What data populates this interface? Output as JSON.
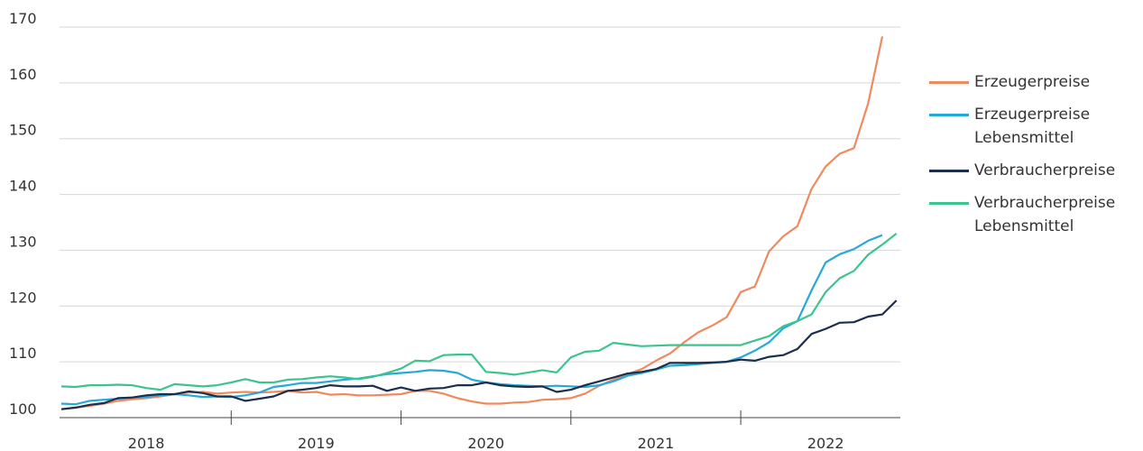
{
  "chart_data": {
    "type": "line",
    "categories": [
      null,
      null,
      null,
      null,
      null,
      null,
      "2018",
      null,
      null,
      null,
      null,
      null,
      null,
      null,
      null,
      null,
      null,
      null,
      "2019",
      null,
      null,
      null,
      null,
      null,
      null,
      null,
      null,
      null,
      null,
      null,
      "2020",
      null,
      null,
      null,
      null,
      null,
      null,
      null,
      null,
      null,
      null,
      null,
      "2021",
      null,
      null,
      null,
      null,
      null,
      null,
      null,
      null,
      null,
      null,
      null,
      "2022",
      null,
      null,
      null,
      null,
      null
    ],
    "series": [
      {
        "name": "Erzeugerpreise",
        "color": "#ef8a5f",
        "values": [
          101.5,
          101.8,
          102.1,
          102.5,
          103,
          103.3,
          103.5,
          103.8,
          104.2,
          104.5,
          104.6,
          104.3,
          104.5,
          104.6,
          104.5,
          104.6,
          104.8,
          104.5,
          104.6,
          104.1,
          104.2,
          104,
          104,
          104.1,
          104.2,
          104.8,
          104.8,
          104.3,
          103.5,
          102.9,
          102.5,
          102.5,
          102.7,
          102.8,
          103.2,
          103.3,
          103.5,
          104.3,
          105.7,
          106.8,
          107.8,
          108.7,
          110.2,
          111.5,
          113.5,
          115.3,
          116.5,
          118,
          122.5,
          123.5,
          129.8,
          132.5,
          134.3,
          141,
          145,
          147.3,
          148.3,
          156.3,
          168.3,
          null
        ]
      },
      {
        "name": "Erzeugerpreise Lebensmittel",
        "color": "#27a9d8",
        "values": [
          102.5,
          102.4,
          103,
          103.2,
          103.4,
          103.6,
          103.7,
          104,
          104.2,
          104,
          103.7,
          103.8,
          103.7,
          104,
          104.5,
          105.5,
          105.8,
          106.2,
          106.2,
          106.5,
          106.8,
          107,
          107.4,
          107.8,
          108,
          108.2,
          108.5,
          108.4,
          108,
          106.8,
          106.3,
          106,
          105.8,
          105.7,
          105.6,
          105.7,
          105.6,
          105.5,
          105.8,
          106.5,
          107.5,
          108,
          108.6,
          109.3,
          109.4,
          109.6,
          109.8,
          110,
          110.8,
          112,
          113.5,
          116,
          117.3,
          122.8,
          127.8,
          129.3,
          130.2,
          131.7,
          132.7,
          null
        ]
      },
      {
        "name": "Verbraucherpreise",
        "color": "#1b2e4b",
        "values": [
          101.5,
          101.8,
          102.3,
          102.6,
          103.5,
          103.6,
          104,
          104.2,
          104.2,
          104.7,
          104.4,
          103.8,
          103.8,
          103,
          103.4,
          103.8,
          104.8,
          105,
          105.3,
          105.8,
          105.6,
          105.6,
          105.7,
          104.8,
          105.4,
          104.8,
          105.2,
          105.3,
          105.8,
          105.8,
          106.3,
          105.8,
          105.6,
          105.5,
          105.6,
          104.6,
          105,
          105.8,
          106.5,
          107.2,
          107.9,
          108.2,
          108.7,
          109.8,
          109.8,
          109.8,
          109.9,
          110,
          110.4,
          110.2,
          110.9,
          111.2,
          112.3,
          115,
          115.9,
          117,
          117.1,
          118.1,
          118.5,
          121
        ]
      },
      {
        "name": "Verbraucherpreise Lebensmittel",
        "color": "#3cc48e",
        "values": [
          105.6,
          105.5,
          105.8,
          105.8,
          105.9,
          105.8,
          105.3,
          105,
          106,
          105.8,
          105.6,
          105.8,
          106.3,
          106.9,
          106.3,
          106.3,
          106.8,
          106.9,
          107.2,
          107.4,
          107.2,
          106.9,
          107.3,
          108,
          108.8,
          110.2,
          110.1,
          111.2,
          111.3,
          111.3,
          108.2,
          108,
          107.7,
          108.1,
          108.5,
          108.1,
          110.8,
          111.8,
          112,
          113.4,
          113.1,
          112.8,
          112.9,
          113,
          113,
          113,
          113,
          113,
          113,
          113.8,
          114.6,
          116.4,
          117.3,
          118.5,
          122.5,
          125,
          126.3,
          129.2,
          131,
          133
        ]
      }
    ],
    "ylim": [
      100,
      170
    ],
    "yticks": [
      100,
      110,
      120,
      130,
      140,
      150,
      160,
      170
    ],
    "grid": true
  }
}
